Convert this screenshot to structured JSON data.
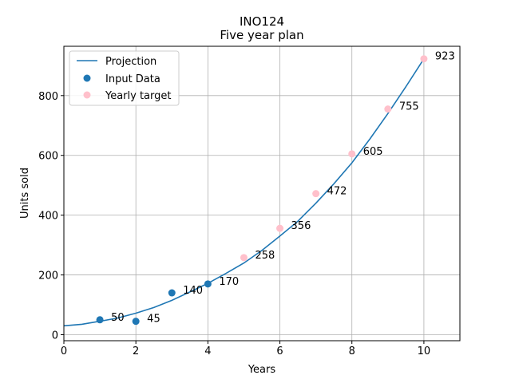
{
  "chart_data": {
    "type": "scatter",
    "title": "INO124",
    "subtitle": "Five year plan",
    "xlabel": "Years",
    "ylabel": "Units sold",
    "xlim": [
      0,
      11
    ],
    "ylim": [
      -20,
      965
    ],
    "x_ticks": [
      0,
      2,
      4,
      6,
      8,
      10
    ],
    "y_ticks": [
      0,
      200,
      400,
      600,
      800
    ],
    "grid": true,
    "legend_position": "top-left",
    "colors": {
      "projection": "#1f77b4",
      "input": "#1f77b4",
      "target": "#ffc0cb",
      "grid": "#b0b0b0"
    },
    "series": [
      {
        "name": "Projection",
        "kind": "line",
        "x": [
          0,
          0.5,
          1,
          1.5,
          2,
          2.5,
          3,
          3.5,
          4,
          4.5,
          5,
          5.5,
          6,
          6.5,
          7,
          7.5,
          8,
          8.5,
          9,
          9.5,
          10
        ],
        "y": [
          30,
          35,
          45,
          56,
          72,
          91,
          115,
          143,
          172,
          205,
          240,
          282,
          330,
          380,
          440,
          505,
          575,
          655,
          740,
          830,
          923
        ]
      },
      {
        "name": "Input Data",
        "kind": "scatter",
        "x": [
          1,
          2,
          3,
          4
        ],
        "y": [
          50,
          45,
          140,
          170
        ],
        "labels": [
          "50",
          "45",
          "140",
          "170"
        ]
      },
      {
        "name": "Yearly target",
        "kind": "scatter",
        "x": [
          5,
          6,
          7,
          8,
          9,
          10
        ],
        "y": [
          258,
          356,
          472,
          605,
          755,
          923
        ],
        "labels": [
          "258",
          "356",
          "472",
          "605",
          "755",
          "923"
        ]
      }
    ]
  }
}
